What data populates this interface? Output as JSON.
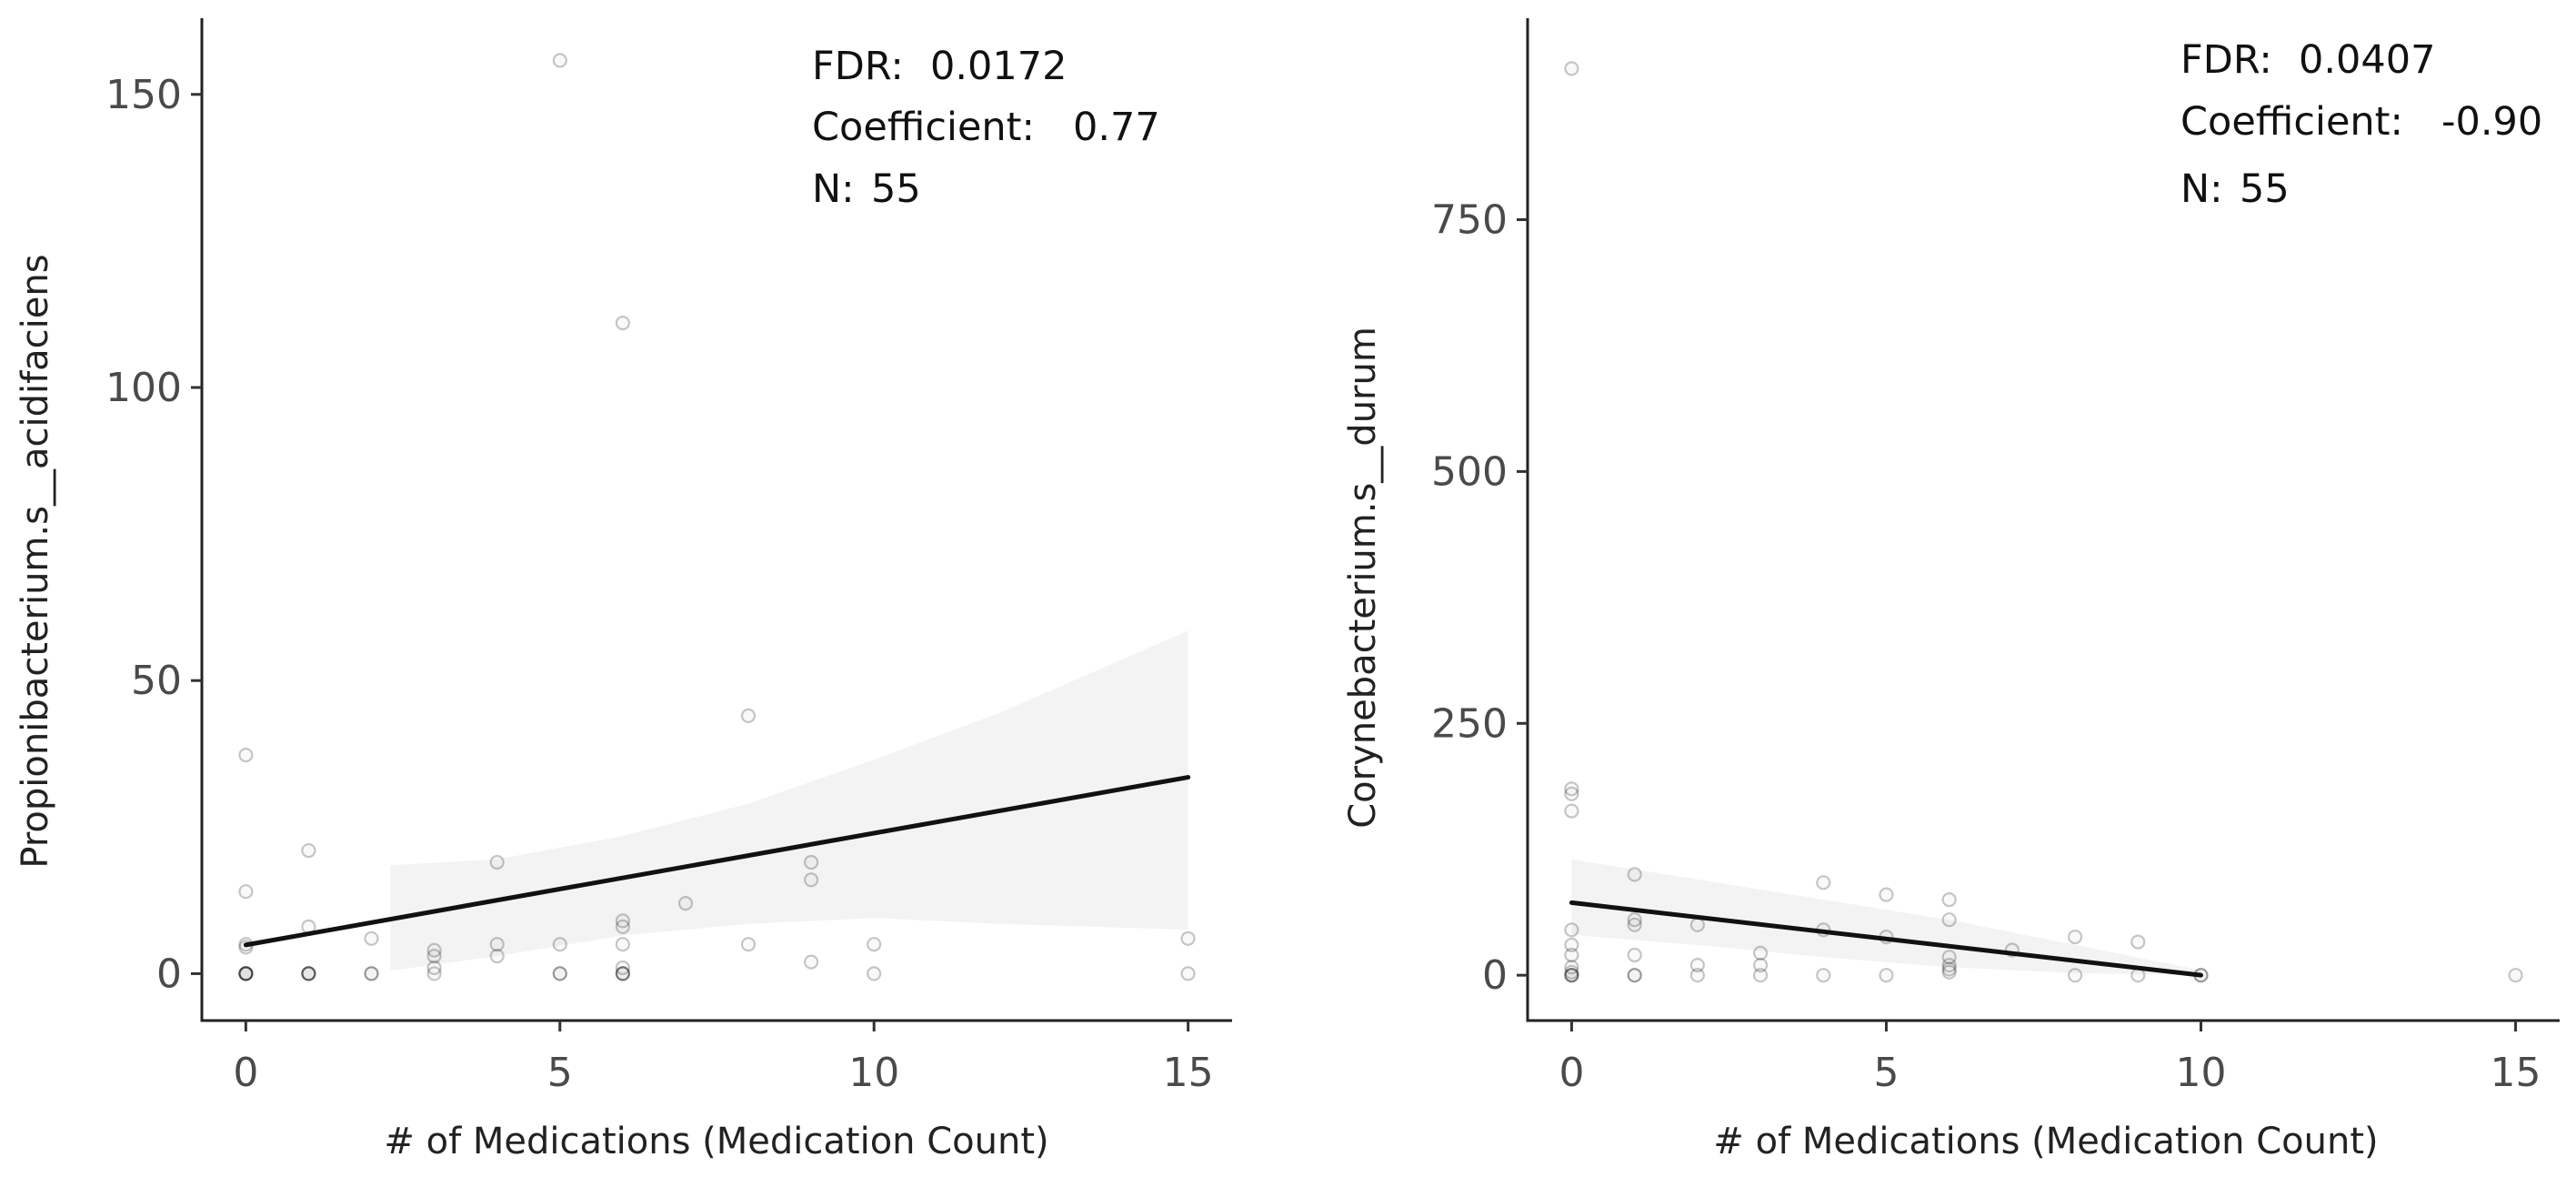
{
  "chart_data": [
    {
      "type": "scatter",
      "panel": "left",
      "title": "",
      "xlabel": "# of Medications (Medication Count)",
      "ylabel": "Propionibacterium.s__acidifaciens",
      "xlim": [
        -0.7,
        15.7
      ],
      "ylim": [
        -8,
        163
      ],
      "xticks": [
        0,
        5,
        10,
        15
      ],
      "yticks": [
        0,
        50,
        100,
        150
      ],
      "annotations": [
        {
          "label": "FDR:",
          "value": "0.0172"
        },
        {
          "label": "Coefficient:",
          "value": "0.77"
        },
        {
          "label": "N:",
          "value": "55"
        }
      ],
      "fit": {
        "x": [
          0,
          15
        ],
        "y": [
          4.9,
          33.5
        ]
      },
      "ci_band": {
        "x": [
          2.3,
          4,
          6,
          8,
          10,
          12,
          15
        ],
        "lower": [
          0.5,
          3,
          6.5,
          8.5,
          9.5,
          8.5,
          7.5
        ],
        "upper": [
          18.5,
          19.5,
          23.5,
          29,
          36.5,
          44.5,
          58.5
        ]
      },
      "points": [
        {
          "x": 0,
          "y": 37.3
        },
        {
          "x": 0,
          "y": 14
        },
        {
          "x": 0,
          "y": 5
        },
        {
          "x": 0,
          "y": 4.5
        },
        {
          "x": 0,
          "y": 0
        },
        {
          "x": 0,
          "y": 0
        },
        {
          "x": 0,
          "y": 0
        },
        {
          "x": 0,
          "y": 0
        },
        {
          "x": 0,
          "y": 0
        },
        {
          "x": 1,
          "y": 21
        },
        {
          "x": 1,
          "y": 8
        },
        {
          "x": 1,
          "y": 0
        },
        {
          "x": 1,
          "y": 0
        },
        {
          "x": 1,
          "y": 0
        },
        {
          "x": 1,
          "y": 0
        },
        {
          "x": 2,
          "y": 6
        },
        {
          "x": 2,
          "y": 0
        },
        {
          "x": 2,
          "y": 0
        },
        {
          "x": 3,
          "y": 4
        },
        {
          "x": 3,
          "y": 3
        },
        {
          "x": 3,
          "y": 1
        },
        {
          "x": 3,
          "y": 0
        },
        {
          "x": 4,
          "y": 19
        },
        {
          "x": 4,
          "y": 5
        },
        {
          "x": 4,
          "y": 3
        },
        {
          "x": 5,
          "y": 155.8
        },
        {
          "x": 5,
          "y": 5
        },
        {
          "x": 5,
          "y": 0
        },
        {
          "x": 5,
          "y": 0
        },
        {
          "x": 6,
          "y": 111
        },
        {
          "x": 6,
          "y": 9
        },
        {
          "x": 6,
          "y": 8
        },
        {
          "x": 6,
          "y": 5
        },
        {
          "x": 6,
          "y": 1
        },
        {
          "x": 6,
          "y": 0
        },
        {
          "x": 6,
          "y": 0
        },
        {
          "x": 6,
          "y": 0
        },
        {
          "x": 7,
          "y": 12
        },
        {
          "x": 8,
          "y": 44
        },
        {
          "x": 8,
          "y": 5
        },
        {
          "x": 9,
          "y": 19
        },
        {
          "x": 9,
          "y": 16
        },
        {
          "x": 9,
          "y": 2
        },
        {
          "x": 10,
          "y": 5
        },
        {
          "x": 10,
          "y": 0
        },
        {
          "x": 15,
          "y": 6
        },
        {
          "x": 15,
          "y": 0
        }
      ]
    },
    {
      "type": "scatter",
      "panel": "right",
      "title": "",
      "xlabel": "# of Medications (Medication Count)",
      "ylabel": "Corynebacterium.s__durum",
      "xlim": [
        -0.7,
        15.7
      ],
      "ylim": [
        -45,
        950
      ],
      "xticks": [
        0,
        5,
        10,
        15
      ],
      "yticks": [
        0,
        250,
        500,
        750
      ],
      "annotations": [
        {
          "label": "FDR:",
          "value": "0.0407"
        },
        {
          "label": "Coefficient:",
          "value": "-0.90"
        },
        {
          "label": "N:",
          "value": "55"
        }
      ],
      "fit": {
        "x": [
          0,
          10
        ],
        "y": [
          72,
          0
        ]
      },
      "ci_band": {
        "x": [
          0,
          2,
          4,
          6,
          8,
          10
        ],
        "lower": [
          40,
          30,
          18,
          8,
          2,
          0
        ],
        "upper": [
          115,
          95,
          75,
          55,
          30,
          5
        ]
      },
      "points": [
        {
          "x": 0,
          "y": 900
        },
        {
          "x": 0,
          "y": 185
        },
        {
          "x": 0,
          "y": 180
        },
        {
          "x": 0,
          "y": 163
        },
        {
          "x": 0,
          "y": 45
        },
        {
          "x": 0,
          "y": 30
        },
        {
          "x": 0,
          "y": 20
        },
        {
          "x": 0,
          "y": 8
        },
        {
          "x": 0,
          "y": 3
        },
        {
          "x": 0,
          "y": 0
        },
        {
          "x": 0,
          "y": 0
        },
        {
          "x": 0,
          "y": 0
        },
        {
          "x": 1,
          "y": 100
        },
        {
          "x": 1,
          "y": 55
        },
        {
          "x": 1,
          "y": 50
        },
        {
          "x": 1,
          "y": 20
        },
        {
          "x": 1,
          "y": 0
        },
        {
          "x": 1,
          "y": 0
        },
        {
          "x": 2,
          "y": 50
        },
        {
          "x": 2,
          "y": 10
        },
        {
          "x": 2,
          "y": 0
        },
        {
          "x": 3,
          "y": 22
        },
        {
          "x": 3,
          "y": 10
        },
        {
          "x": 3,
          "y": 0
        },
        {
          "x": 4,
          "y": 92
        },
        {
          "x": 4,
          "y": 45
        },
        {
          "x": 4,
          "y": 0
        },
        {
          "x": 5,
          "y": 80
        },
        {
          "x": 5,
          "y": 38
        },
        {
          "x": 5,
          "y": 0
        },
        {
          "x": 6,
          "y": 75
        },
        {
          "x": 6,
          "y": 55
        },
        {
          "x": 6,
          "y": 18
        },
        {
          "x": 6,
          "y": 10
        },
        {
          "x": 6,
          "y": 6
        },
        {
          "x": 6,
          "y": 3
        },
        {
          "x": 7,
          "y": 25
        },
        {
          "x": 8,
          "y": 38
        },
        {
          "x": 8,
          "y": 0
        },
        {
          "x": 9,
          "y": 33
        },
        {
          "x": 9,
          "y": 0
        },
        {
          "x": 10,
          "y": 0
        },
        {
          "x": 10,
          "y": 0
        },
        {
          "x": 15,
          "y": 0
        }
      ]
    }
  ]
}
